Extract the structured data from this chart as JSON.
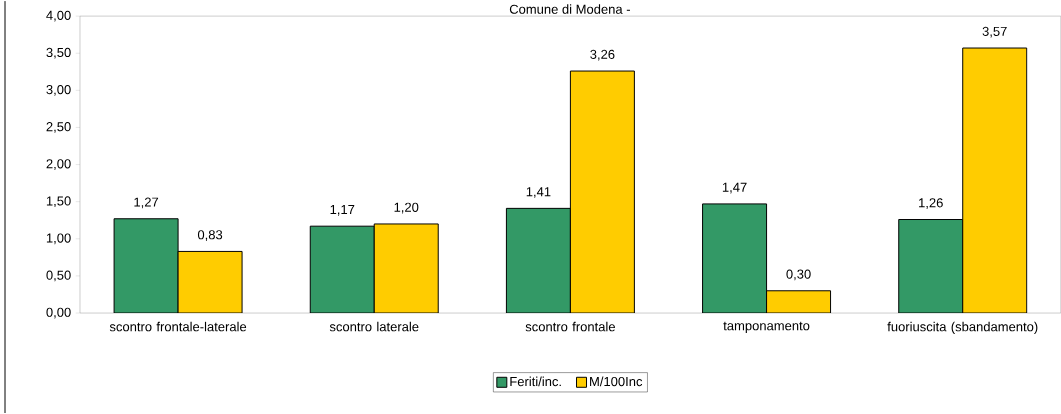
{
  "chart_data": {
    "type": "bar",
    "title": "Comune di Modena -",
    "categories": [
      "scontro frontale-laterale",
      "scontro laterale",
      "scontro frontale",
      "tamponamento",
      "fuoriuscita (sbandamento)"
    ],
    "series": [
      {
        "name": "Feriti/inc.",
        "color": "#339966",
        "values": [
          1.27,
          1.17,
          1.41,
          1.47,
          1.26
        ],
        "value_labels": [
          "1,27",
          "1,17",
          "1,41",
          "1,47",
          "1,26"
        ]
      },
      {
        "name": "M/100Inc",
        "color": "#ffcc00",
        "values": [
          0.83,
          1.2,
          3.26,
          0.3,
          3.57
        ],
        "value_labels": [
          "0,83",
          "1,20",
          "3,26",
          "0,30",
          "3,57"
        ]
      }
    ],
    "ylim": [
      0,
      4
    ],
    "yticks": [
      {
        "value": 0,
        "label": "0,00"
      },
      {
        "value": 0.5,
        "label": "0,50"
      },
      {
        "value": 1,
        "label": "1,00"
      },
      {
        "value": 1.5,
        "label": "1,50"
      },
      {
        "value": 2,
        "label": "2,00"
      },
      {
        "value": 2.5,
        "label": "2,50"
      },
      {
        "value": 3,
        "label": "3,00"
      },
      {
        "value": 3.5,
        "label": "3,50"
      },
      {
        "value": 4,
        "label": "4,00"
      }
    ],
    "grid": false,
    "legend": "bottom"
  }
}
